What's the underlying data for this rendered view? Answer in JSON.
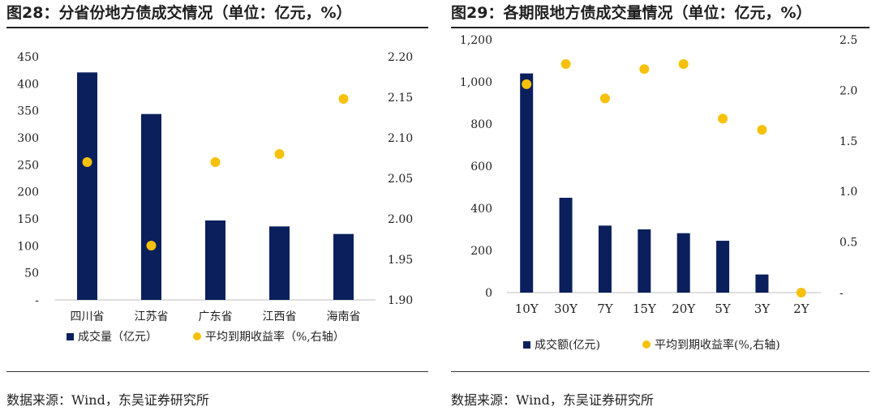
{
  "colors": {
    "bar": "#0b1f5c",
    "dot": "#f6c10a",
    "axis": "#bfbfbf"
  },
  "chart_data": [
    {
      "type": "bar",
      "title": "图28：分省份地方债成交情况（单位：亿元，%）",
      "categories": [
        "四川省",
        "江苏省",
        "广东省",
        "江西省",
        "海南省"
      ],
      "series": [
        {
          "name": "成交量（亿元）",
          "type": "bar",
          "axis": "left",
          "values": [
            421,
            344,
            147,
            136,
            122
          ]
        },
        {
          "name": "平均到期收益率（%,右轴）",
          "type": "scatter",
          "axis": "right",
          "values": [
            2.07,
            1.967,
            2.07,
            2.08,
            2.148
          ]
        }
      ],
      "y_left": {
        "ylim": [
          0,
          450
        ],
        "ticks": [
          "-",
          "50",
          "100",
          "150",
          "200",
          "250",
          "300",
          "350",
          "400",
          "450"
        ]
      },
      "y_right": {
        "ylim": [
          1.9,
          2.2
        ],
        "ticks": [
          "1.90",
          "1.95",
          "2.00",
          "2.05",
          "2.10",
          "2.15",
          "2.20"
        ]
      },
      "grid": false,
      "legend": "bottom",
      "source": "数据来源：Wind，东吴证券研究所"
    },
    {
      "type": "bar",
      "title": "图29：各期限地方债成交量情况（单位：亿元，%）",
      "categories": [
        "10Y",
        "30Y",
        "7Y",
        "15Y",
        "20Y",
        "5Y",
        "3Y",
        "2Y"
      ],
      "series": [
        {
          "name": "成交额(亿元)",
          "type": "bar",
          "axis": "left",
          "values": [
            1040,
            450,
            318,
            300,
            282,
            246,
            86,
            0
          ]
        },
        {
          "name": "平均到期收益率(%,右轴)",
          "type": "scatter",
          "axis": "right",
          "values": [
            2.06,
            2.26,
            1.92,
            2.21,
            2.26,
            1.72,
            1.61,
            0
          ]
        }
      ],
      "y_left": {
        "ylim": [
          0,
          1200
        ],
        "ticks": [
          "0",
          "200",
          "400",
          "600",
          "800",
          "1,000",
          "1,200"
        ]
      },
      "y_right": {
        "ylim": [
          0,
          2.5
        ],
        "ticks": [
          "-",
          "0.5",
          "1.0",
          "1.5",
          "2.0",
          "2.5"
        ]
      },
      "grid": false,
      "legend": "bottom",
      "source": "数据来源：Wind，东吴证券研究所"
    }
  ]
}
